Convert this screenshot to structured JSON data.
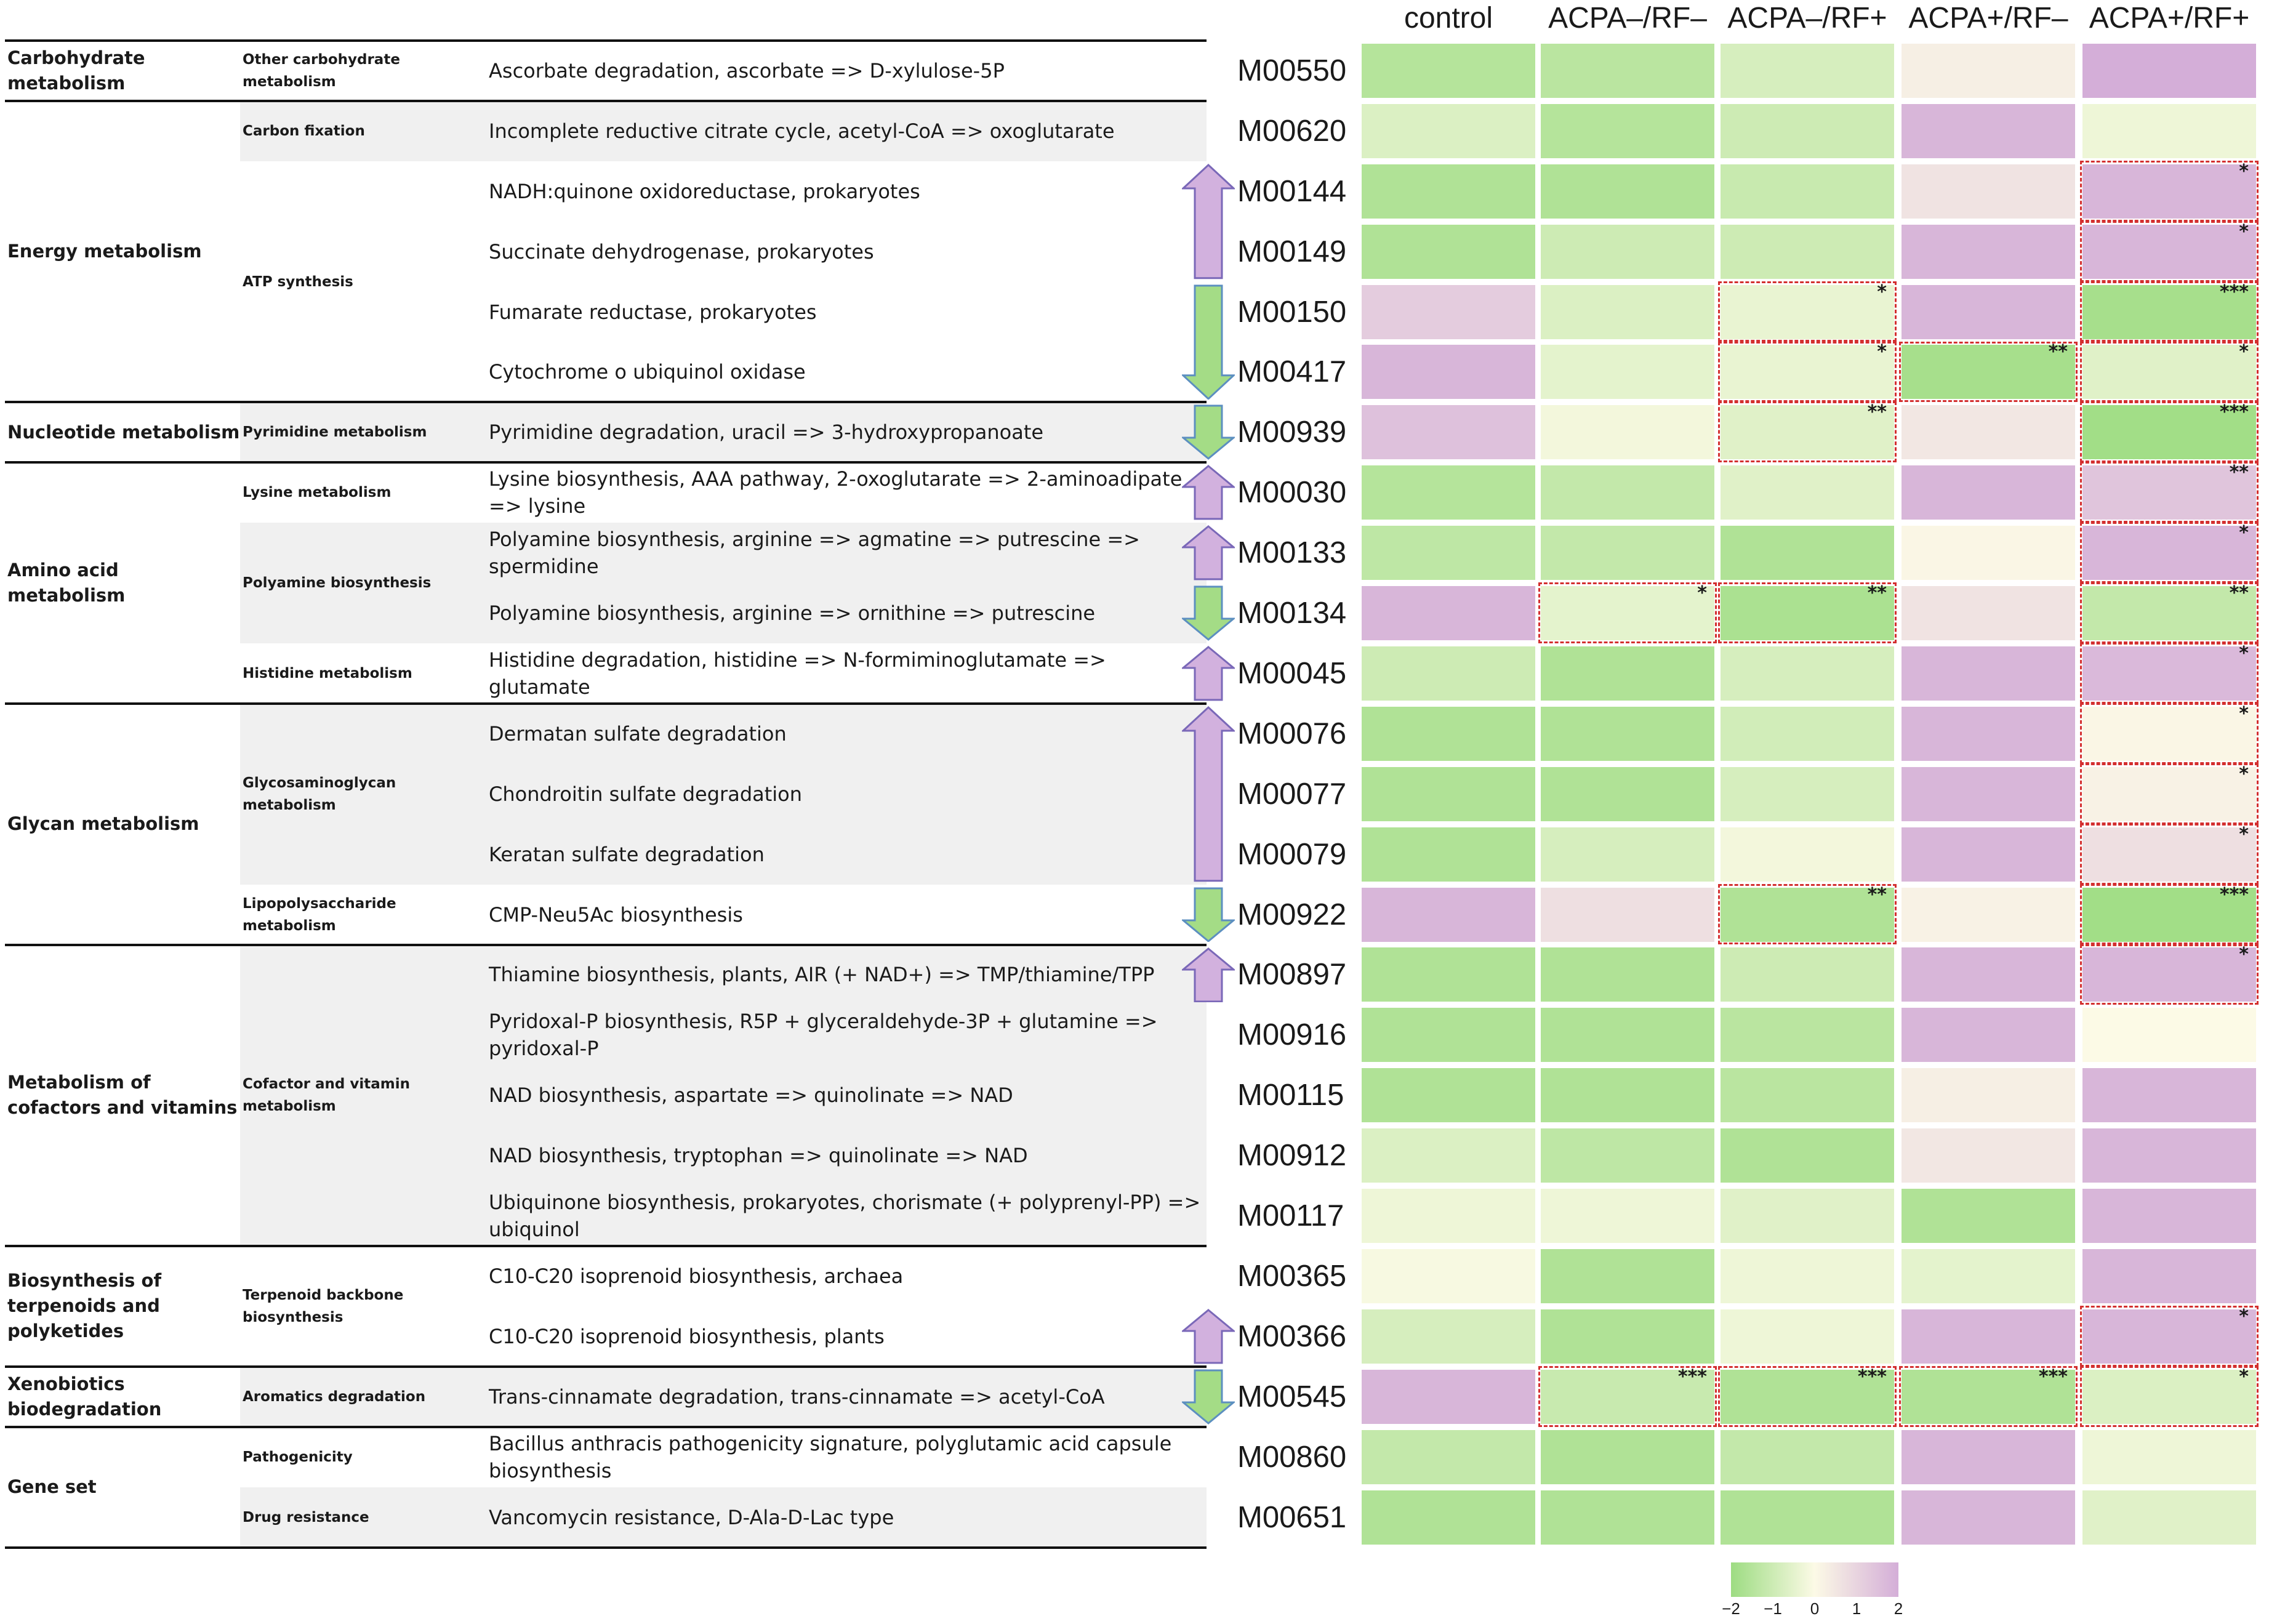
{
  "columns": [
    "control",
    "ACPA–/RF–",
    "ACPA–/RF+",
    "ACPA+/RF–",
    "ACPA+/RF+"
  ],
  "categories": [
    {
      "label": "Carbohydrate metabolism",
      "start": 0,
      "end": 0
    },
    {
      "label": "Energy metabolism",
      "start": 1,
      "end": 5
    },
    {
      "label": "Nucleotide metabolism",
      "start": 6,
      "end": 6
    },
    {
      "label": "Amino acid metabolism",
      "start": 7,
      "end": 10
    },
    {
      "label": "Glycan metabolism",
      "start": 11,
      "end": 14
    },
    {
      "label": "Metabolism of cofactors and vitamins",
      "start": 15,
      "end": 19
    },
    {
      "label": "Biosynthesis of terpenoids and polyketides",
      "start": 20,
      "end": 21
    },
    {
      "label": "Xenobiotics biodegradation",
      "start": 22,
      "end": 22
    },
    {
      "label": "Gene set",
      "start": 23,
      "end": 24
    }
  ],
  "subcategories": [
    {
      "label": "Other carbohydrate metabolism",
      "start": 0,
      "end": 0
    },
    {
      "label": "Carbon fixation",
      "start": 1,
      "end": 1
    },
    {
      "label": "ATP synthesis",
      "start": 2,
      "end": 5
    },
    {
      "label": "Pyrimidine metabolism",
      "start": 6,
      "end": 6
    },
    {
      "label": "Lysine metabolism",
      "start": 7,
      "end": 7
    },
    {
      "label": "Polyamine biosynthesis",
      "start": 8,
      "end": 9
    },
    {
      "label": "Histidine metabolism",
      "start": 10,
      "end": 10
    },
    {
      "label": "Glycosaminoglycan metabolism",
      "start": 11,
      "end": 13
    },
    {
      "label": "Lipopolysaccharide metabolism",
      "start": 14,
      "end": 14
    },
    {
      "label": "Cofactor and vitamin metabolism",
      "start": 15,
      "end": 19
    },
    {
      "label": "Terpenoid backbone biosynthesis",
      "start": 20,
      "end": 21
    },
    {
      "label": "Aromatics degradation",
      "start": 22,
      "end": 22
    },
    {
      "label": "Pathogenicity",
      "start": 23,
      "end": 23
    },
    {
      "label": "Drug resistance",
      "start": 24,
      "end": 24
    }
  ],
  "chart_data": {
    "type": "heatmap",
    "title": "",
    "x_categories": [
      "control",
      "ACPA–/RF–",
      "ACPA–/RF+",
      "ACPA+/RF–",
      "ACPA+/RF+"
    ],
    "color_scale": {
      "min": -2,
      "max": 2,
      "low_color": "#9ddc82",
      "mid_color": "#fcfae6",
      "high_color": "#d4aed8",
      "ticks": [
        "−2",
        "−1",
        "0",
        "1",
        "2"
      ]
    },
    "rows": [
      {
        "module": "M00550",
        "description": "Ascorbate degradation, ascorbate => D-xylulose-5P",
        "values": [
          -1.5,
          -1.4,
          -0.8,
          0.3,
          2.0
        ],
        "stars": [
          "",
          "",
          "",
          "",
          ""
        ]
      },
      {
        "module": "M00620",
        "description": "Incomplete reductive citrate cycle, acetyl-CoA => oxoglutarate",
        "values": [
          -0.7,
          -1.5,
          -1.0,
          1.8,
          -0.3
        ],
        "stars": [
          "",
          "",
          "",
          "",
          ""
        ]
      },
      {
        "module": "M00144",
        "description": "NADH:quinone oxidoreductase, prokaryotes",
        "values": [
          -1.6,
          -1.6,
          -1.1,
          0.6,
          1.8
        ],
        "stars": [
          "",
          "",
          "",
          "",
          "*"
        ]
      },
      {
        "module": "M00149",
        "description": "Succinate dehydrogenase, prokaryotes",
        "values": [
          -1.6,
          -1.0,
          -1.0,
          1.8,
          1.8
        ],
        "stars": [
          "",
          "",
          "",
          "",
          "*"
        ]
      },
      {
        "module": "M00150",
        "description": "Fumarate reductase, prokaryotes",
        "values": [
          1.2,
          -0.7,
          -0.4,
          1.8,
          -1.8
        ],
        "stars": [
          "",
          "",
          "*",
          "",
          "***"
        ]
      },
      {
        "module": "M00417",
        "description": "Cytochrome o ubiquinol oxidase",
        "values": [
          1.8,
          -0.5,
          -0.4,
          -1.8,
          -0.6
        ],
        "stars": [
          "",
          "",
          "*",
          "**",
          "*"
        ]
      },
      {
        "module": "M00939",
        "description": "Pyrimidine degradation, uracil => 3-hydroxypropanoate",
        "values": [
          1.5,
          -0.2,
          -0.6,
          0.5,
          -1.9
        ],
        "stars": [
          "",
          "",
          "**",
          "",
          "***"
        ]
      },
      {
        "module": "M00030",
        "description": "Lysine biosynthesis, AAA pathway, 2-oxoglutarate => 2-aminoadipate => lysine",
        "values": [
          -1.5,
          -1.2,
          -0.6,
          1.8,
          1.4
        ],
        "stars": [
          "",
          "",
          "",
          "",
          "**"
        ]
      },
      {
        "module": "M00133",
        "description": "Polyamine biosynthesis, arginine => agmatine => putrescine => spermidine",
        "values": [
          -1.3,
          -1.2,
          -1.6,
          0.1,
          1.8
        ],
        "stars": [
          "",
          "",
          "",
          "",
          "*"
        ]
      },
      {
        "module": "M00134",
        "description": "Polyamine biosynthesis, arginine => ornithine => putrescine",
        "values": [
          1.8,
          -0.5,
          -1.7,
          0.6,
          -1.2
        ],
        "stars": [
          "",
          "*",
          "**",
          "",
          "**"
        ]
      },
      {
        "module": "M00045",
        "description": "Histidine degradation, histidine => N-formiminoglutamate => glutamate",
        "values": [
          -1.0,
          -1.6,
          -0.8,
          1.8,
          1.7
        ],
        "stars": [
          "",
          "",
          "",
          "",
          "*"
        ]
      },
      {
        "module": "M00076",
        "description": "Dermatan sulfate degradation",
        "values": [
          -1.6,
          -1.6,
          -0.9,
          1.8,
          0.1
        ],
        "stars": [
          "",
          "",
          "",
          "",
          "*"
        ]
      },
      {
        "module": "M00077",
        "description": "Chondroitin sulfate degradation",
        "values": [
          -1.6,
          -1.6,
          -0.8,
          1.8,
          0.2
        ],
        "stars": [
          "",
          "",
          "",
          "",
          "*"
        ]
      },
      {
        "module": "M00079",
        "description": "Keratan sulfate degradation",
        "values": [
          -1.6,
          -0.8,
          -0.2,
          1.8,
          0.7
        ],
        "stars": [
          "",
          "",
          "",
          "",
          "*"
        ]
      },
      {
        "module": "M00922",
        "description": "CMP-Neu5Ac biosynthesis",
        "values": [
          1.8,
          0.7,
          -1.6,
          0.2,
          -1.9
        ],
        "stars": [
          "",
          "",
          "**",
          "",
          "***"
        ]
      },
      {
        "module": "M00897",
        "description": "Thiamine biosynthesis, plants, AIR (+ NAD+) => TMP/thiamine/TPP",
        "values": [
          -1.6,
          -1.6,
          -1.0,
          1.8,
          1.8
        ],
        "stars": [
          "",
          "",
          "",
          "",
          "*"
        ]
      },
      {
        "module": "M00916",
        "description": "Pyridoxal-P biosynthesis, R5P + glyceraldehyde-3P + glutamine => pyridoxal-P",
        "values": [
          -1.6,
          -1.6,
          -1.4,
          1.8,
          0.0
        ],
        "stars": [
          "",
          "",
          "",
          "",
          ""
        ]
      },
      {
        "module": "M00115",
        "description": "NAD biosynthesis, aspartate => quinolinate => NAD",
        "values": [
          -1.6,
          -1.6,
          -1.4,
          0.3,
          1.8
        ],
        "stars": [
          "",
          "",
          "",
          "",
          ""
        ]
      },
      {
        "module": "M00912",
        "description": "NAD biosynthesis, tryptophan => quinolinate => NAD",
        "values": [
          -0.7,
          -1.3,
          -1.6,
          0.5,
          1.8
        ],
        "stars": [
          "",
          "",
          "",
          "",
          ""
        ]
      },
      {
        "module": "M00117",
        "description": "Ubiquinone biosynthesis, prokaryotes, chorismate (+ polyprenyl-PP) => ubiquinol",
        "values": [
          -0.3,
          -0.3,
          -0.6,
          -1.6,
          1.8
        ],
        "stars": [
          "",
          "",
          "",
          "",
          ""
        ]
      },
      {
        "module": "M00365",
        "description": "C10-C20 isoprenoid biosynthesis, archaea",
        "values": [
          -0.1,
          -1.6,
          -0.3,
          -0.5,
          1.8
        ],
        "stars": [
          "",
          "",
          "",
          "",
          ""
        ]
      },
      {
        "module": "M00366",
        "description": "C10-C20 isoprenoid biosynthesis, plants",
        "values": [
          -0.8,
          -1.6,
          -0.3,
          1.8,
          1.8
        ],
        "stars": [
          "",
          "",
          "",
          "",
          "*"
        ]
      },
      {
        "module": "M00545",
        "description": "Trans-cinnamate degradation, trans-cinnamate => acetyl-CoA",
        "values": [
          1.8,
          -1.1,
          -1.6,
          -1.6,
          -0.7
        ],
        "stars": [
          "",
          "***",
          "***",
          "***",
          "*"
        ]
      },
      {
        "module": "M00860",
        "description": "Bacillus anthracis pathogenicity signature, polyglutamic acid capsule biosynthesis",
        "values": [
          -1.2,
          -1.6,
          -1.2,
          1.8,
          -0.3
        ],
        "stars": [
          "",
          "",
          "",
          "",
          ""
        ]
      },
      {
        "module": "M00651",
        "description": "Vancomycin resistance, D-Ala-D-Lac type",
        "values": [
          -1.6,
          -1.6,
          -1.6,
          1.8,
          -0.6
        ],
        "stars": [
          "",
          "",
          "",
          "",
          ""
        ]
      }
    ],
    "significant_cells": [
      [
        2,
        4
      ],
      [
        3,
        4
      ],
      [
        4,
        2
      ],
      [
        4,
        4
      ],
      [
        5,
        2
      ],
      [
        5,
        3
      ],
      [
        5,
        4
      ],
      [
        6,
        2
      ],
      [
        6,
        4
      ],
      [
        7,
        4
      ],
      [
        8,
        4
      ],
      [
        9,
        1
      ],
      [
        9,
        2
      ],
      [
        9,
        4
      ],
      [
        10,
        4
      ],
      [
        11,
        4
      ],
      [
        12,
        4
      ],
      [
        13,
        4
      ],
      [
        14,
        2
      ],
      [
        14,
        4
      ],
      [
        15,
        4
      ],
      [
        21,
        4
      ],
      [
        22,
        1
      ],
      [
        22,
        2
      ],
      [
        22,
        3
      ],
      [
        22,
        4
      ]
    ],
    "arrows": [
      {
        "direction": "up",
        "start": 2,
        "end": 3
      },
      {
        "direction": "down",
        "start": 4,
        "end": 5
      },
      {
        "direction": "down",
        "start": 6,
        "end": 6
      },
      {
        "direction": "up",
        "start": 7,
        "end": 7
      },
      {
        "direction": "up",
        "start": 8,
        "end": 8
      },
      {
        "direction": "down",
        "start": 9,
        "end": 9
      },
      {
        "direction": "up",
        "start": 10,
        "end": 10
      },
      {
        "direction": "up",
        "start": 11,
        "end": 13
      },
      {
        "direction": "down",
        "start": 14,
        "end": 14
      },
      {
        "direction": "up",
        "start": 15,
        "end": 15
      },
      {
        "direction": "up",
        "start": 21,
        "end": 21
      },
      {
        "direction": "down",
        "start": 22,
        "end": 22
      }
    ]
  },
  "colors": {
    "green": "#9ddc82",
    "neutral": "#fcfae6",
    "purple": "#d4aed8",
    "arrow_up_fill": "#d2b1de",
    "arrow_up_stroke": "#7a68b8",
    "arrow_down_fill": "#a4dc86",
    "arrow_down_stroke": "#5c8fc0",
    "sig_border": "#d32f2f",
    "row_shade": "#f0f0f0"
  }
}
